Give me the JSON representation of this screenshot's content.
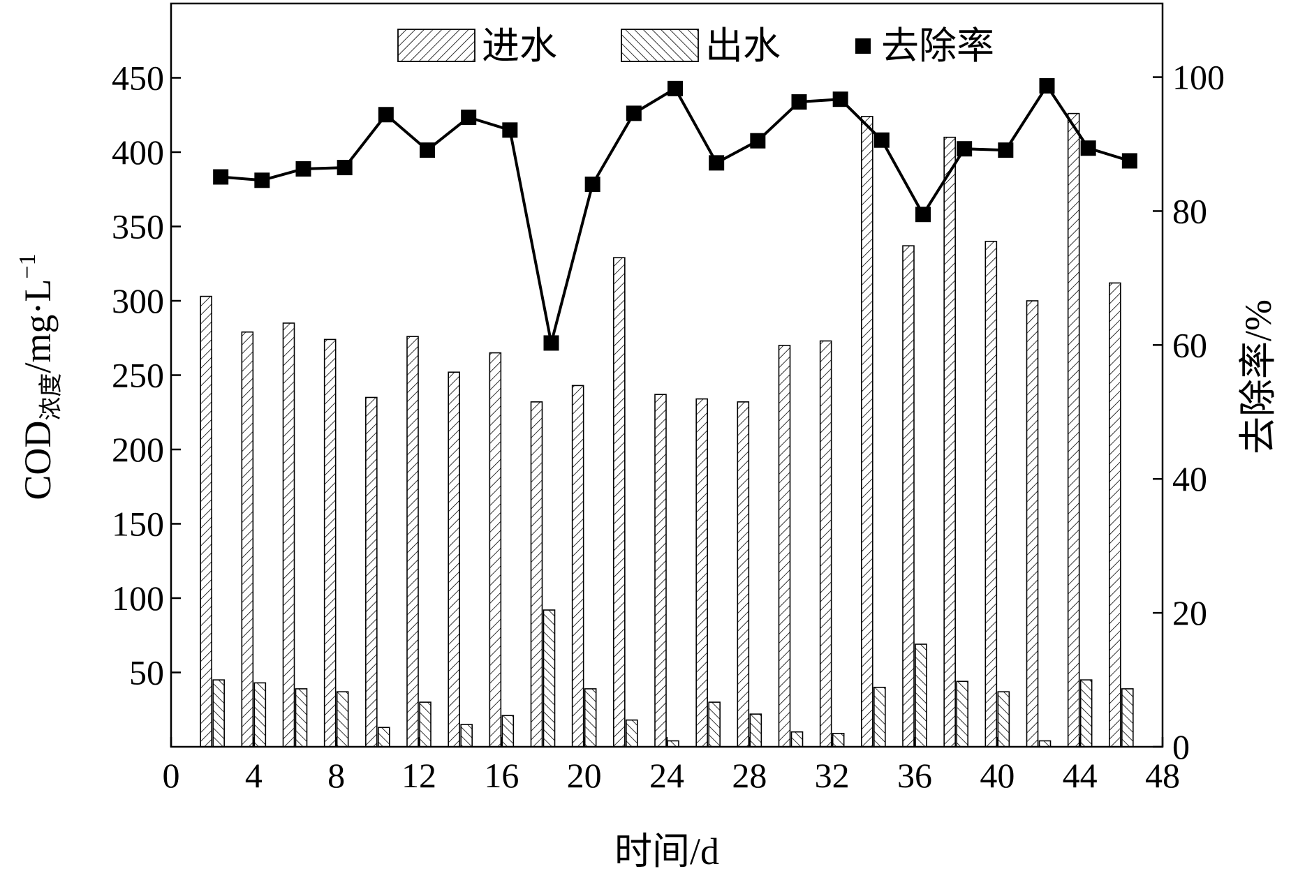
{
  "chart_data": {
    "type": "bar",
    "x": [
      2,
      4,
      6,
      8,
      10,
      12,
      14,
      16,
      18,
      20,
      22,
      24,
      26,
      28,
      30,
      32,
      34,
      36,
      38,
      40,
      42,
      44,
      46
    ],
    "series": [
      {
        "name": "进水",
        "type": "bar",
        "axis": "left",
        "pattern": "forward-hatch",
        "values": [
          303,
          279,
          285,
          274,
          235,
          276,
          252,
          265,
          232,
          243,
          329,
          237,
          234,
          232,
          270,
          273,
          424,
          337,
          410,
          340,
          300,
          426,
          312
        ]
      },
      {
        "name": "出水",
        "type": "bar",
        "axis": "left",
        "pattern": "back-hatch",
        "values": [
          45,
          43,
          39,
          37,
          13,
          30,
          15,
          21,
          92,
          39,
          18,
          4,
          30,
          22,
          10,
          9,
          40,
          69,
          44,
          37,
          4,
          45,
          39
        ]
      },
      {
        "name": "去除率",
        "type": "line",
        "axis": "right",
        "marker": "square",
        "values": [
          85.1,
          84.6,
          86.3,
          86.5,
          94.4,
          89.1,
          94.0,
          92.1,
          60.3,
          84.0,
          94.6,
          98.3,
          87.2,
          90.5,
          96.3,
          96.7,
          90.6,
          79.5,
          89.3,
          89.1,
          98.7,
          89.4,
          87.5
        ]
      }
    ],
    "xlabel": "时间/d",
    "ylabel": "COD",
    "ylabel_subscript": "浓度",
    "ylabel_units": "/mg·L",
    "ylabel_superscript": "−1",
    "y2label": "去除率/%",
    "xlim": [
      0,
      48
    ],
    "ylim": [
      0,
      500
    ],
    "y2lim": [
      0,
      111
    ],
    "xticks": [
      0,
      4,
      8,
      12,
      16,
      20,
      24,
      28,
      32,
      36,
      40,
      44,
      48
    ],
    "yticks": [
      50,
      100,
      150,
      200,
      250,
      300,
      350,
      400,
      450
    ],
    "y2ticks": [
      0,
      20,
      40,
      60,
      80,
      100
    ],
    "legend": {
      "position": "top-center",
      "orientation": "horizontal"
    },
    "grid": false
  }
}
